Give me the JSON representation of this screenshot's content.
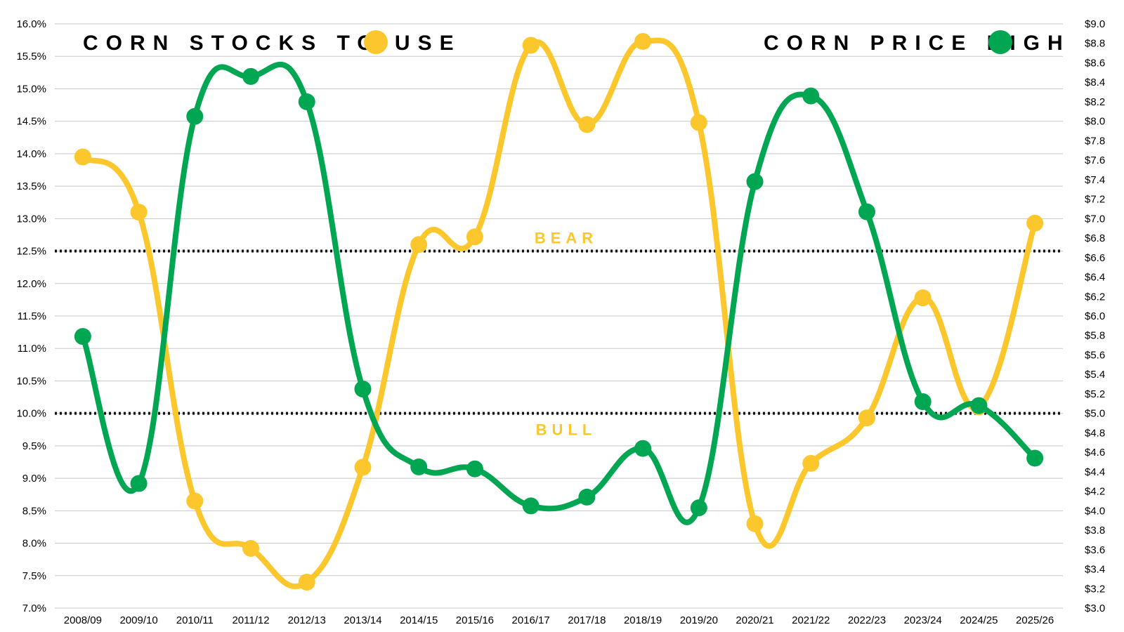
{
  "chart_data": {
    "type": "line",
    "categories": [
      "2008/09",
      "2009/10",
      "2010/11",
      "2011/12",
      "2012/13",
      "2013/14",
      "2014/15",
      "2015/16",
      "2016/17",
      "2017/18",
      "2018/19",
      "2019/20",
      "2020/21",
      "2021/22",
      "2022/23",
      "2023/24",
      "2024/25",
      "2025/26"
    ],
    "series": [
      {
        "name": "CORN STOCKS TO USE",
        "axis": "left",
        "color": "#fcc72c",
        "values": [
          13.95,
          13.1,
          8.65,
          7.92,
          7.4,
          9.17,
          12.6,
          12.72,
          15.67,
          14.45,
          15.73,
          14.48,
          8.3,
          9.23,
          9.93,
          11.78,
          10.1,
          12.93
        ]
      },
      {
        "name": "CORN PRICE HIGH",
        "axis": "right",
        "color": "#00a651",
        "values": [
          5.79,
          4.28,
          8.05,
          8.46,
          8.2,
          5.25,
          4.45,
          4.43,
          4.05,
          4.14,
          4.64,
          4.03,
          7.38,
          8.26,
          7.07,
          5.12,
          5.08,
          4.54
        ]
      }
    ],
    "left_axis": {
      "min": 7.0,
      "max": 16.0,
      "step": 0.5,
      "ticks": [
        "7.0%",
        "7.5%",
        "8.0%",
        "8.5%",
        "9.0%",
        "9.5%",
        "10.0%",
        "10.5%",
        "11.0%",
        "11.5%",
        "12.0%",
        "12.5%",
        "13.0%",
        "13.5%",
        "14.0%",
        "14.5%",
        "15.0%",
        "15.5%",
        "16.0%"
      ]
    },
    "right_axis": {
      "min": 3.0,
      "max": 9.0,
      "step": 0.2,
      "ticks": [
        "$3.0",
        "$3.2",
        "$3.4",
        "$3.6",
        "$3.8",
        "$4.0",
        "$4.2",
        "$4.4",
        "$4.6",
        "$4.8",
        "$5.0",
        "$5.2",
        "$5.4",
        "$5.6",
        "$5.8",
        "$6.0",
        "$6.2",
        "$6.4",
        "$6.6",
        "$6.8",
        "$7.0",
        "$7.2",
        "$7.4",
        "$7.6",
        "$7.8",
        "$8.0",
        "$8.2",
        "$8.4",
        "$8.6",
        "$8.8",
        "$9.0"
      ]
    },
    "reference_lines": [
      {
        "value": 12.5,
        "axis": "left",
        "label": "BEAR",
        "label_position": "above"
      },
      {
        "value": 10.0,
        "axis": "left",
        "label": "BULL",
        "label_position": "below"
      }
    ],
    "legend": [
      {
        "label": "CORN STOCKS TO USE",
        "color": "#fcc72c",
        "position": "top-left"
      },
      {
        "label": "CORN PRICE HIGH",
        "color": "#00a651",
        "position": "top-right"
      }
    ],
    "grid": true,
    "gridline_color": "#c8c8c8"
  }
}
